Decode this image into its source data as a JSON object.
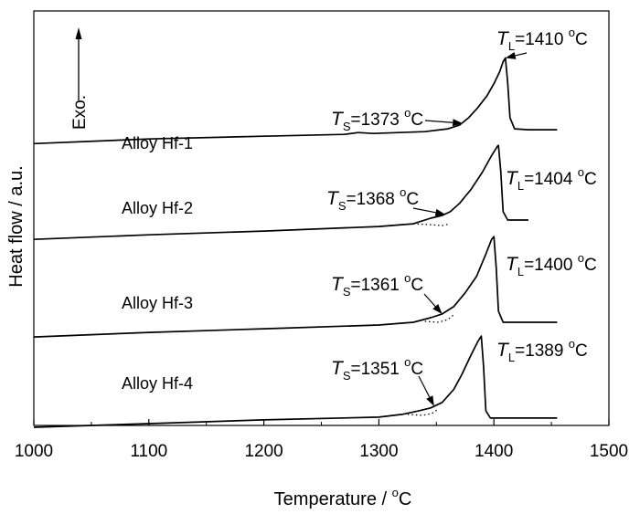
{
  "chart_data": {
    "type": "line",
    "xlabel_main": "Temperature / ",
    "xlabel_unit_sup": "o",
    "xlabel_unit": "C",
    "ylabel": "Heat flow / a.u.",
    "xlim": [
      1000,
      1500
    ],
    "ylim": [
      0,
      4.5
    ],
    "xticks": [
      "1000",
      "1100",
      "1200",
      "1300",
      "1400",
      "1500"
    ],
    "exo_label": "Exo.",
    "series": [
      {
        "name": "Alloy Hf-1",
        "ts_text": "=1373 ",
        "tl_text": "=1410 ",
        "x": [
          1000,
          1100,
          1200,
          1270,
          1282,
          1295,
          1340,
          1360,
          1370,
          1378,
          1386,
          1394,
          1400,
          1405,
          1408,
          1410,
          1412,
          1414,
          1418,
          1430,
          1455
        ],
        "y": [
          3.06,
          3.11,
          3.14,
          3.16,
          3.18,
          3.17,
          3.19,
          3.22,
          3.26,
          3.34,
          3.45,
          3.58,
          3.71,
          3.84,
          3.95,
          3.99,
          3.72,
          3.34,
          3.22,
          3.21,
          3.21
        ]
      },
      {
        "name": "Alloy Hf-2",
        "ts_text": "=1368 ",
        "tl_text": "=1404 ",
        "x": [
          1000,
          1100,
          1200,
          1300,
          1330,
          1345,
          1355,
          1362,
          1370,
          1380,
          1390,
          1398,
          1403,
          1404,
          1406,
          1408,
          1412,
          1420,
          1430
        ],
        "y": [
          2.02,
          2.07,
          2.11,
          2.16,
          2.19,
          2.25,
          2.28,
          2.32,
          2.41,
          2.56,
          2.75,
          2.93,
          3.03,
          3.04,
          2.76,
          2.32,
          2.23,
          2.23,
          2.23
        ],
        "dotted_x": [
          1330,
          1345,
          1355,
          1362
        ],
        "dotted_y": [
          2.19,
          2.18,
          2.17,
          2.19
        ]
      },
      {
        "name": "Alloy Hf-3",
        "ts_text": "=1361 ",
        "tl_text": "=1400 ",
        "x": [
          1000,
          1100,
          1200,
          1300,
          1330,
          1345,
          1355,
          1365,
          1375,
          1385,
          1393,
          1398,
          1400,
          1402,
          1404,
          1408,
          1420,
          1455
        ],
        "y": [
          0.96,
          1.01,
          1.05,
          1.09,
          1.12,
          1.17,
          1.21,
          1.29,
          1.44,
          1.62,
          1.86,
          2.02,
          2.05,
          1.72,
          1.24,
          1.12,
          1.12,
          1.12
        ],
        "dotted_x": [
          1340,
          1352,
          1360,
          1366
        ],
        "dotted_y": [
          1.13,
          1.12,
          1.15,
          1.21
        ]
      },
      {
        "name": "Alloy Hf-4",
        "ts_text": "=1351 ",
        "tl_text": "=1389 ",
        "x": [
          1000,
          1100,
          1200,
          1300,
          1320,
          1335,
          1345,
          1355,
          1365,
          1372,
          1380,
          1386,
          1389,
          1391,
          1393,
          1397,
          1410,
          1455
        ],
        "y": [
          -0.02,
          0.02,
          0.06,
          0.09,
          0.12,
          0.16,
          0.19,
          0.25,
          0.39,
          0.55,
          0.76,
          0.91,
          0.97,
          0.64,
          0.16,
          0.08,
          0.08,
          0.08
        ],
        "dotted_x": [
          1325,
          1338,
          1346,
          1352
        ],
        "dotted_y": [
          0.12,
          0.11,
          0.13,
          0.18
        ]
      }
    ]
  }
}
